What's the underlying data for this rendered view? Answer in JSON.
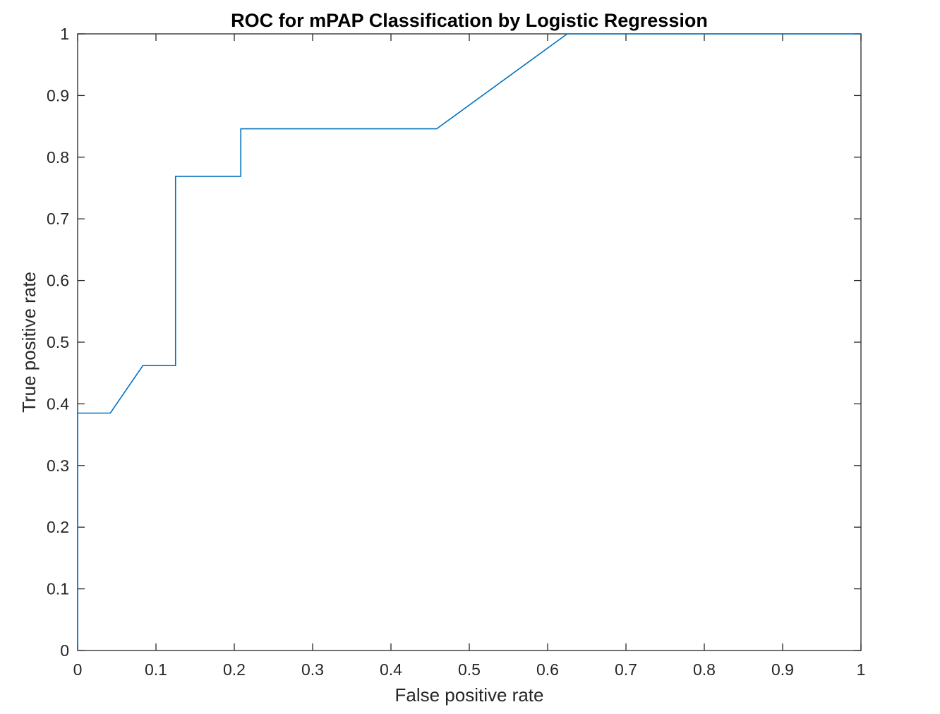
{
  "chart_data": {
    "type": "line",
    "title": "ROC for mPAP Classification by Logistic Regression",
    "xlabel": "False positive rate",
    "ylabel": "True positive rate",
    "xlim": [
      0,
      1
    ],
    "ylim": [
      0,
      1
    ],
    "grid": false,
    "box": true,
    "x_ticks": [
      0,
      0.1,
      0.2,
      0.3,
      0.4,
      0.5,
      0.6,
      0.7,
      0.8,
      0.9,
      1
    ],
    "x_tick_labels": [
      "0",
      "0.1",
      "0.2",
      "0.3",
      "0.4",
      "0.5",
      "0.6",
      "0.7",
      "0.8",
      "0.9",
      "1"
    ],
    "y_ticks": [
      0,
      0.1,
      0.2,
      0.3,
      0.4,
      0.5,
      0.6,
      0.7,
      0.8,
      0.9,
      1
    ],
    "y_tick_labels": [
      "0",
      "0.1",
      "0.2",
      "0.3",
      "0.4",
      "0.5",
      "0.6",
      "0.7",
      "0.8",
      "0.9",
      "1"
    ],
    "series": [
      {
        "color": "#0072bd",
        "x": [
          0,
          0,
          0.0417,
          0.0833,
          0.125,
          0.125,
          0.2083,
          0.2083,
          0.4583,
          0.625,
          1
        ],
        "y": [
          0,
          0.385,
          0.385,
          0.462,
          0.462,
          0.769,
          0.769,
          0.846,
          0.846,
          1,
          1
        ]
      }
    ]
  }
}
